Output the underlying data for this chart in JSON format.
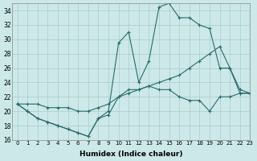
{
  "xlabel": "Humidex (Indice chaleur)",
  "ylabel": "",
  "background_color": "#cce8e8",
  "grid_color": "#aacccc",
  "line_color": "#2a6b6b",
  "xlim": [
    -0.5,
    23
  ],
  "ylim": [
    16,
    35
  ],
  "xticks": [
    0,
    1,
    2,
    3,
    4,
    5,
    6,
    7,
    8,
    9,
    10,
    11,
    12,
    13,
    14,
    15,
    16,
    17,
    18,
    19,
    20,
    21,
    22,
    23
  ],
  "yticks": [
    16,
    18,
    20,
    22,
    24,
    26,
    28,
    30,
    32,
    34
  ],
  "series": [
    {
      "x": [
        0,
        1,
        2,
        3,
        4,
        5,
        6,
        7,
        8,
        9,
        10,
        11,
        12,
        13,
        14,
        15,
        16,
        17,
        18,
        19,
        20,
        21,
        22,
        23
      ],
      "y": [
        21,
        20,
        19,
        18.5,
        18,
        17.5,
        17,
        16.5,
        19,
        19.5,
        22,
        23,
        23,
        23.5,
        23,
        23,
        22,
        21.5,
        21.5,
        20,
        22,
        22,
        22.5,
        22.5
      ]
    },
    {
      "x": [
        0,
        1,
        2,
        3,
        4,
        5,
        6,
        7,
        8,
        9,
        10,
        11,
        12,
        13,
        14,
        15,
        16,
        17,
        18,
        19,
        20,
        21,
        22,
        23
      ],
      "y": [
        21,
        20,
        19,
        18.5,
        18,
        17.5,
        17,
        16.5,
        19,
        20,
        29.5,
        31,
        24,
        27,
        34.5,
        35,
        33,
        33,
        32,
        31.5,
        26,
        26,
        23,
        22.5
      ]
    },
    {
      "x": [
        0,
        1,
        2,
        3,
        4,
        5,
        6,
        7,
        8,
        9,
        10,
        11,
        12,
        13,
        14,
        15,
        16,
        17,
        18,
        19,
        20,
        21,
        22,
        23
      ],
      "y": [
        21,
        21,
        21,
        20.5,
        20.5,
        20.5,
        20,
        20,
        20.5,
        21,
        22,
        22.5,
        23,
        23.5,
        24,
        24.5,
        25,
        26,
        27,
        28,
        29,
        26,
        22.5,
        22.5
      ]
    }
  ]
}
